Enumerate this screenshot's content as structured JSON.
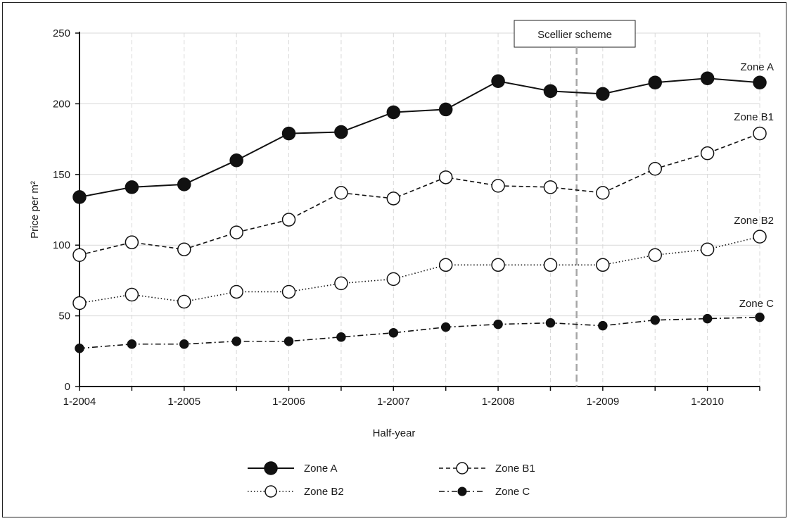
{
  "chart_data": {
    "type": "line",
    "title": "",
    "xlabel": "Half-year",
    "ylabel": "Price per m²",
    "x": [
      "1-2004",
      "7-2004",
      "1-2005",
      "7-2005",
      "1-2006",
      "7-2006",
      "1-2007",
      "7-2007",
      "1-2008",
      "7-2008",
      "1-2009",
      "7-2009",
      "1-2010",
      "7-2010"
    ],
    "x_tick_labels": [
      "1-2004",
      "1-2005",
      "1-2006",
      "1-2007",
      "1-2008",
      "1-2009",
      "1-2010"
    ],
    "ylim": [
      0,
      250
    ],
    "y_ticks": [
      "0",
      "50",
      "100",
      "150",
      "200",
      "250"
    ],
    "grid": true,
    "legend_position": "bottom",
    "series": [
      {
        "name": "Zone A",
        "end_label": "Zone A",
        "marker": "filled-large",
        "line": "solid",
        "values": [
          134,
          141,
          143,
          160,
          179,
          180,
          194,
          196,
          216,
          209,
          207,
          215,
          218,
          215
        ]
      },
      {
        "name": "Zone B1",
        "end_label": "Zone B1",
        "marker": "open",
        "line": "dashed",
        "values": [
          93,
          102,
          97,
          109,
          118,
          137,
          133,
          148,
          142,
          141,
          137,
          154,
          165,
          179
        ]
      },
      {
        "name": "Zone B2",
        "end_label": "Zone B2",
        "marker": "open",
        "line": "dotted",
        "values": [
          59,
          65,
          60,
          67,
          67,
          73,
          76,
          86,
          86,
          86,
          86,
          93,
          97,
          106
        ]
      },
      {
        "name": "Zone C",
        "end_label": "Zone C",
        "marker": "filled-small",
        "line": "dash-dot",
        "values": [
          27,
          30,
          30,
          32,
          32,
          35,
          38,
          42,
          44,
          45,
          43,
          47,
          48,
          49
        ]
      }
    ],
    "annotations": [
      {
        "type": "vline",
        "x_between": [
          "7-2008",
          "1-2009"
        ],
        "label": "Scellier scheme",
        "style": "dashed"
      }
    ]
  },
  "colors": {
    "line": "#111111",
    "grid": "#d9d9d9",
    "annotation_line": "#a6a6a6",
    "open_marker_fill": "#ffffff"
  }
}
